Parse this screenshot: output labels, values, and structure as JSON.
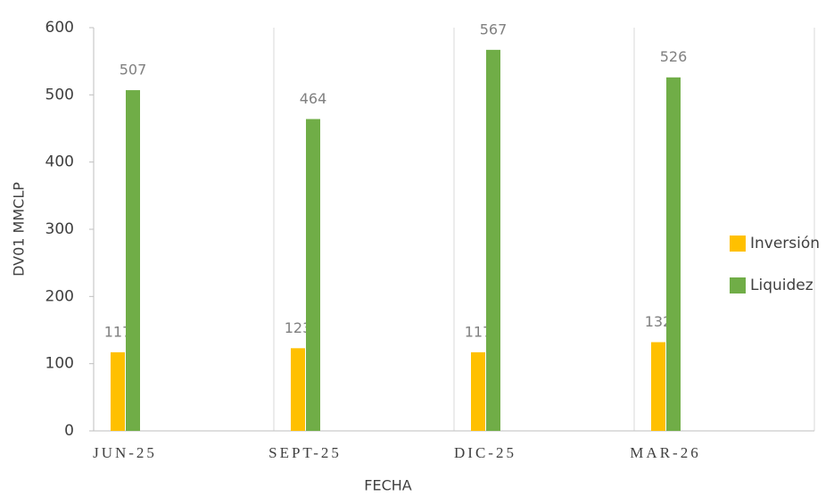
{
  "chart_data": {
    "type": "bar",
    "x_label": "FECHA",
    "y_label": "DV01 MMCLP",
    "categories": [
      "JUN-25",
      "SEPT-25",
      "DIC-25",
      "MAR-26"
    ],
    "series": [
      {
        "name": "Inversión",
        "color": "#ffc000",
        "values": [
          117,
          123,
          117,
          132
        ]
      },
      {
        "name": "Liquidez",
        "color": "#70ad47",
        "values": [
          507,
          464,
          567,
          526
        ]
      }
    ],
    "ylim": [
      0,
      600
    ],
    "yticks": [
      0,
      100,
      200,
      300,
      400,
      500,
      600
    ],
    "grid": true,
    "legend": "right"
  }
}
